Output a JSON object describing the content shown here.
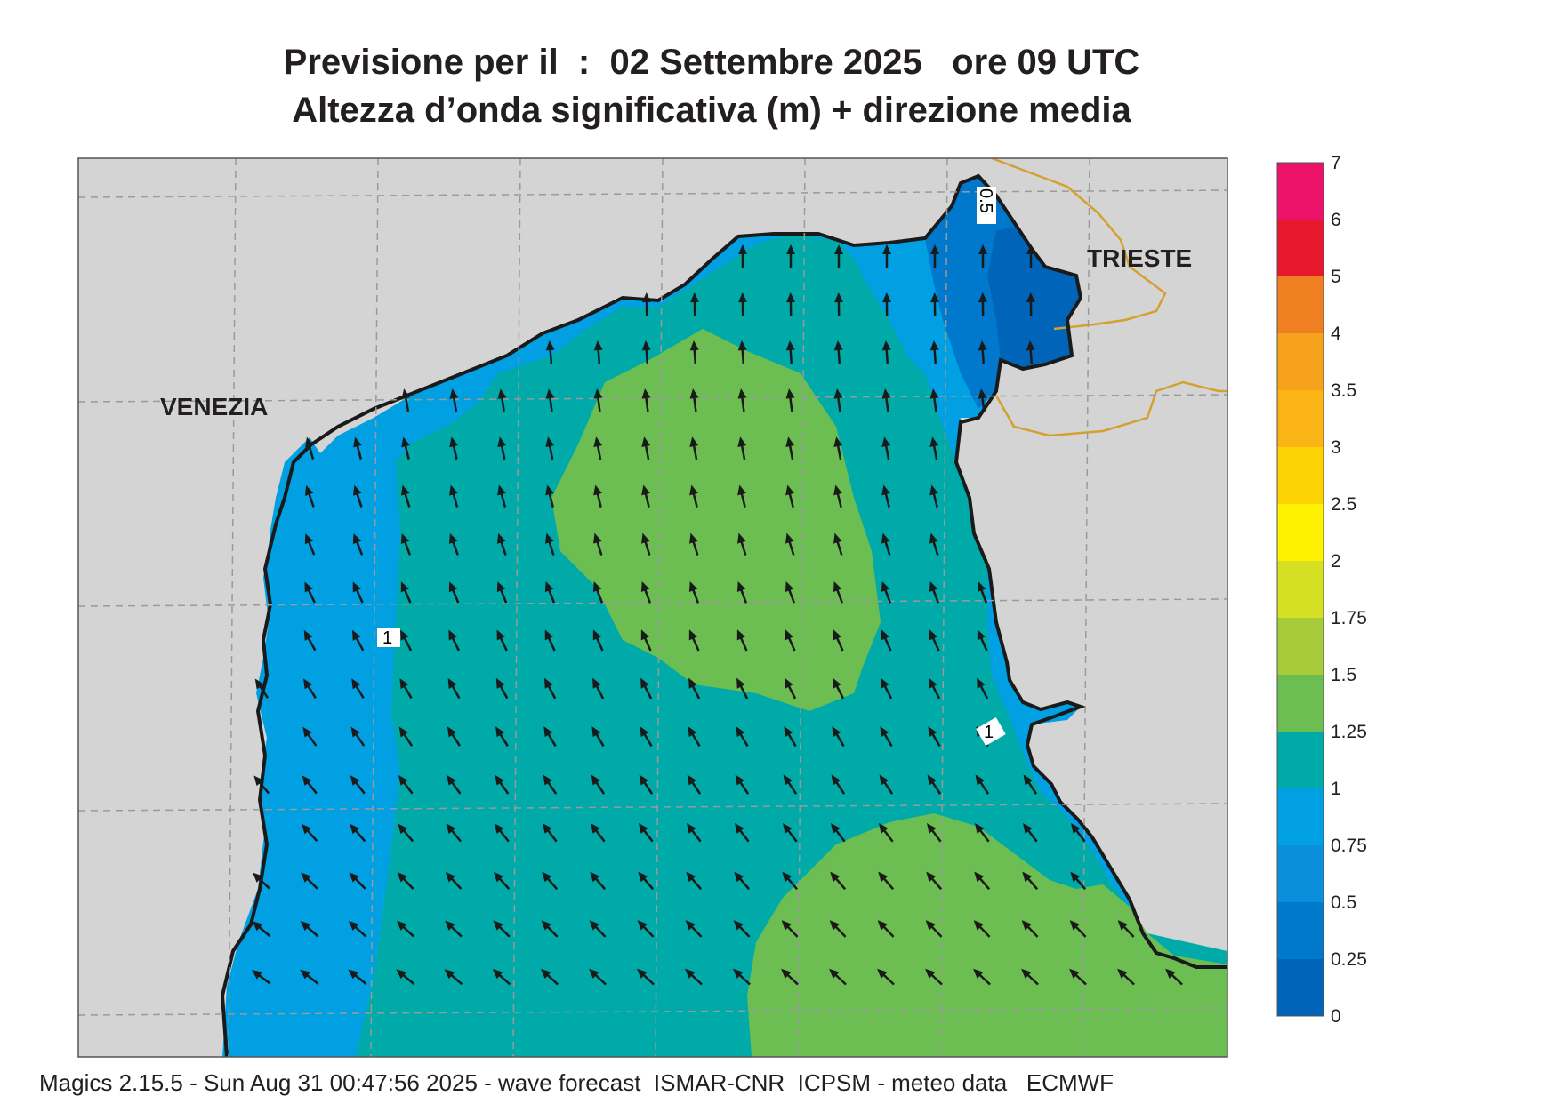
{
  "title": {
    "line1": "Previsione per il  :  02 Settembre 2025   ore 09 UTC",
    "line2": "Altezza d’onda significativa (m) + direzione media"
  },
  "map": {
    "places": [
      "VENEZIA",
      "TRIESTE"
    ],
    "contour_labels": [
      "0.5",
      "1",
      "1"
    ],
    "colors": {
      "land": "#d4d4d4",
      "sea_0_25": "#0064b9",
      "sea_0_5": "#0078cc",
      "sea_0_75": "#0a8fdb",
      "sea_1": "#00a0e3",
      "sea_1_25": "#00aaa8",
      "sea_1_5": "#6dbe52",
      "coast": "#1a1a1a",
      "border": "#d4a030",
      "grid": "#9a9a9a",
      "arrow": "#1a1a1a"
    }
  },
  "legend": {
    "labels": [
      "7",
      "6",
      "5",
      "4",
      "3.5",
      "3",
      "2.5",
      "2",
      "1.75",
      "1.5",
      "1.25",
      "1",
      "0.75",
      "0.5",
      "0.25",
      "0"
    ],
    "colors": [
      "#ec1169",
      "#e8192c",
      "#f07f21",
      "#f6a21c",
      "#fab415",
      "#fdd304",
      "#fff200",
      "#d5df23",
      "#a6cc3c",
      "#6dbe52",
      "#00aaa8",
      "#00a0e3",
      "#0a8fdb",
      "#0078cc",
      "#0064b9"
    ]
  },
  "footer": "Magics 2.15.5 - Sun Aug 31 00:47:56 2025 - wave forecast  ISMAR-CNR  ICPSM - meteo data   ECMWF"
}
